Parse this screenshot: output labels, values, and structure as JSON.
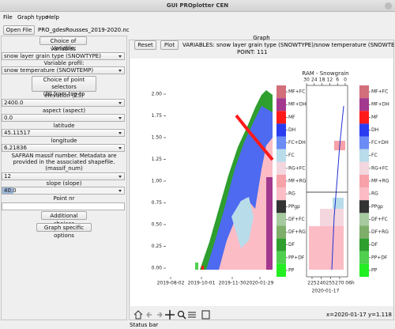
{
  "window": {
    "title": "GUI PROplotter CEN"
  },
  "menu": [
    "File",
    "Graph type",
    "Help"
  ],
  "toolbar": {
    "open_button": "Open File",
    "file": "PRO_gdesRousses_2019-2020.nc"
  },
  "left_panel": {
    "choice_button": "Choice of variables",
    "variable_label": "Variable:",
    "variable_value": "snow layer grain type (SNOWTYPE)",
    "profil_label": "Variable profil:",
    "profil_value": "snow temperature (SNOWTEMP)",
    "selector_button": [
      "Choice of point selectors",
      "(fill from top to bottom)"
    ],
    "elevation_label": "elevation (ZS)",
    "elevation_value": "2400.0",
    "aspect_label": "aspect (aspect)",
    "aspect_value": "0.0",
    "latitude_label": "latitude",
    "latitude_value": "45.11517",
    "longitude_label": "longitude",
    "longitude_value": "6.21836",
    "massif_label": "SAFRAN massif number. Metadata are provided in the associated shapefile. (massif_num)",
    "massif_value": "12",
    "slope_label": "slope (slope)",
    "slope_value": "40.0",
    "point_label": "Point nr",
    "additional_button": "Additional choices",
    "graph_options_button": "Graph specific options"
  },
  "graph": {
    "header": "Graph",
    "reset_button": "Reset",
    "plot_button": "Plot",
    "variables": "VARIABLES: snow layer grain type (SNOWTYPE)/snow temperature (SNOWTEMP).",
    "point": "POINT: 111"
  },
  "chart_data": {
    "type": "snow-profile",
    "ylim": [
      -0.1,
      2.1
    ],
    "yticks": [
      {
        "value": 0,
        "label": "0.00"
      },
      {
        "value": 0.25,
        "label": "0.25"
      },
      {
        "value": 0.5,
        "label": "0.50"
      },
      {
        "value": 0.75,
        "label": "0.75"
      },
      {
        "value": 1,
        "label": "1.00"
      },
      {
        "value": 1.25,
        "label": "1.25"
      },
      {
        "value": 1.5,
        "label": "1.50"
      },
      {
        "value": 1.75,
        "label": "1.75"
      },
      {
        "value": 2,
        "label": "2.00"
      }
    ],
    "x_tick_labels": [
      "2019-08-02",
      "2019-10-01",
      "2019-11-30",
      "2020-01-29"
    ],
    "legend": [
      {
        "name": "MF+FC",
        "color": "#d26f7a"
      },
      {
        "name": "MF+DH",
        "color": "#a3398f"
      },
      {
        "name": "MF",
        "color": "#ff1a1a"
      },
      {
        "name": "DH",
        "color": "#2a3cf0"
      },
      {
        "name": "FC+DH",
        "color": "#6b8cf5"
      },
      {
        "name": "FC",
        "color": "#b9dcea"
      },
      {
        "name": "RG+FC",
        "color": "#f4d6de"
      },
      {
        "name": "MF+RG",
        "color": "#f7a1a8"
      },
      {
        "name": "RG",
        "color": "#fbbcc6"
      },
      {
        "name": "PPgp",
        "color": "#333333"
      },
      {
        "name": "DF+FC",
        "color": "#a6c9a0"
      },
      {
        "name": "DF+RG",
        "color": "#7fae6a"
      },
      {
        "name": "DF",
        "color": "#2e9e2e"
      },
      {
        "name": "PP+DF",
        "color": "#4fd04f"
      },
      {
        "name": "PP",
        "color": "#22ee22"
      }
    ],
    "profile": {
      "title": "RAM - Snowgrain",
      "x2lim": [
        30,
        0
      ],
      "x2ticks": [
        30,
        24,
        18,
        12,
        6,
        0
      ],
      "xlim": [
        216,
        283
      ],
      "xticks": [
        225,
        240,
        255,
        270
      ],
      "time_label": "06h",
      "date": "2020-01-17"
    }
  },
  "status": {
    "coords": "x=2020-01-17 y=1.118",
    "bar": "Status bar"
  }
}
